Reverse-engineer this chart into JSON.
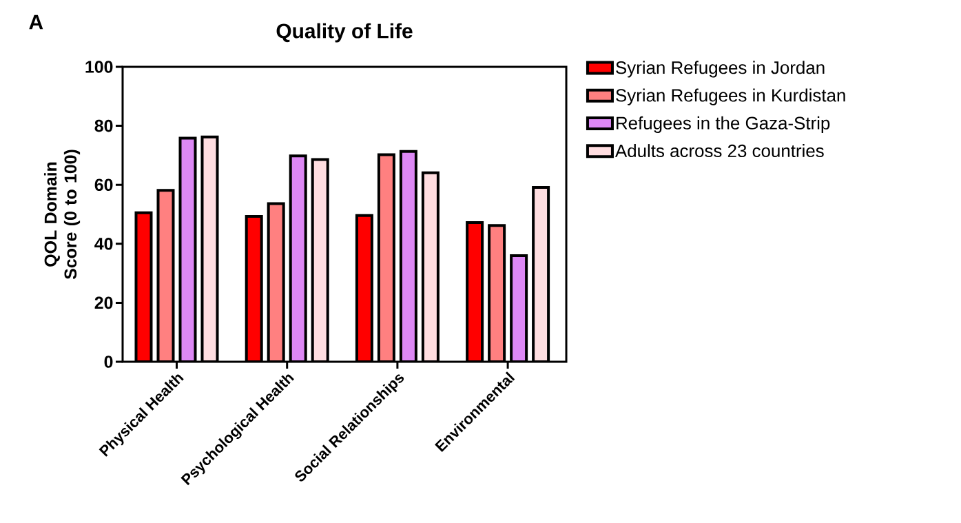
{
  "chart_data": {
    "type": "bar",
    "title": "Quality of Life",
    "ylabel": "QOL Domain Score (0 to 100)",
    "annotations": [
      "A"
    ],
    "categories": [
      "Physical Health",
      "Psychological Health",
      "Social Relationships",
      "Environmental"
    ],
    "series": [
      {
        "name": "Syrian Refugees in Jordan",
        "color": "#ff0000",
        "values": [
          50.5,
          49.3,
          49.6,
          47.2
        ]
      },
      {
        "name": "Syrian Refugees in Kurdistan",
        "color": "#ff8080",
        "values": [
          58.1,
          53.6,
          70.2,
          46.2
        ]
      },
      {
        "name": "Refugees in the Gaza-Strip",
        "color": "#dd88f5",
        "values": [
          75.8,
          69.8,
          71.3,
          36.0
        ]
      },
      {
        "name": "Adults across 23 countries",
        "color": "#ffdde0",
        "values": [
          76.2,
          68.6,
          64.1,
          59.1
        ]
      }
    ],
    "ylim": [
      0,
      100
    ],
    "yticks": [
      0,
      20,
      40,
      60,
      80,
      100
    ],
    "grid": false,
    "legend": "right"
  }
}
